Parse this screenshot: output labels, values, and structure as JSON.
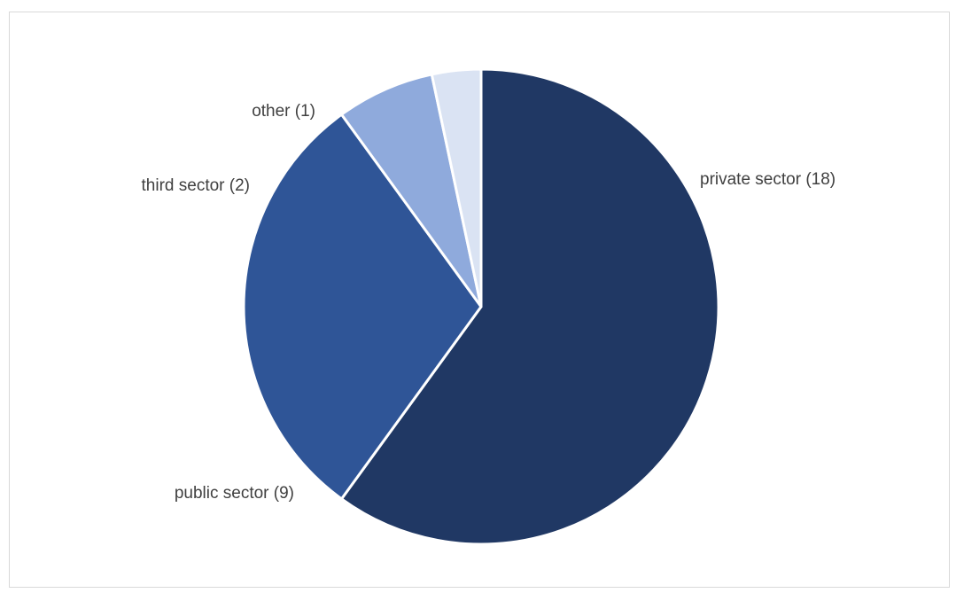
{
  "chart_data": {
    "type": "pie",
    "title": "",
    "slices": [
      {
        "label": "private sector (18)",
        "value": 18,
        "color": "#203864"
      },
      {
        "label": "public sector (9)",
        "value": 9,
        "color": "#2f5597"
      },
      {
        "label": "third sector (2)",
        "value": 2,
        "color": "#8faadc"
      },
      {
        "label": "other (1)",
        "value": 1,
        "color": "#dae3f3"
      }
    ],
    "start_angle_deg": 0,
    "direction": "clockwise",
    "slice_border_color": "#ffffff",
    "legend": "none"
  }
}
